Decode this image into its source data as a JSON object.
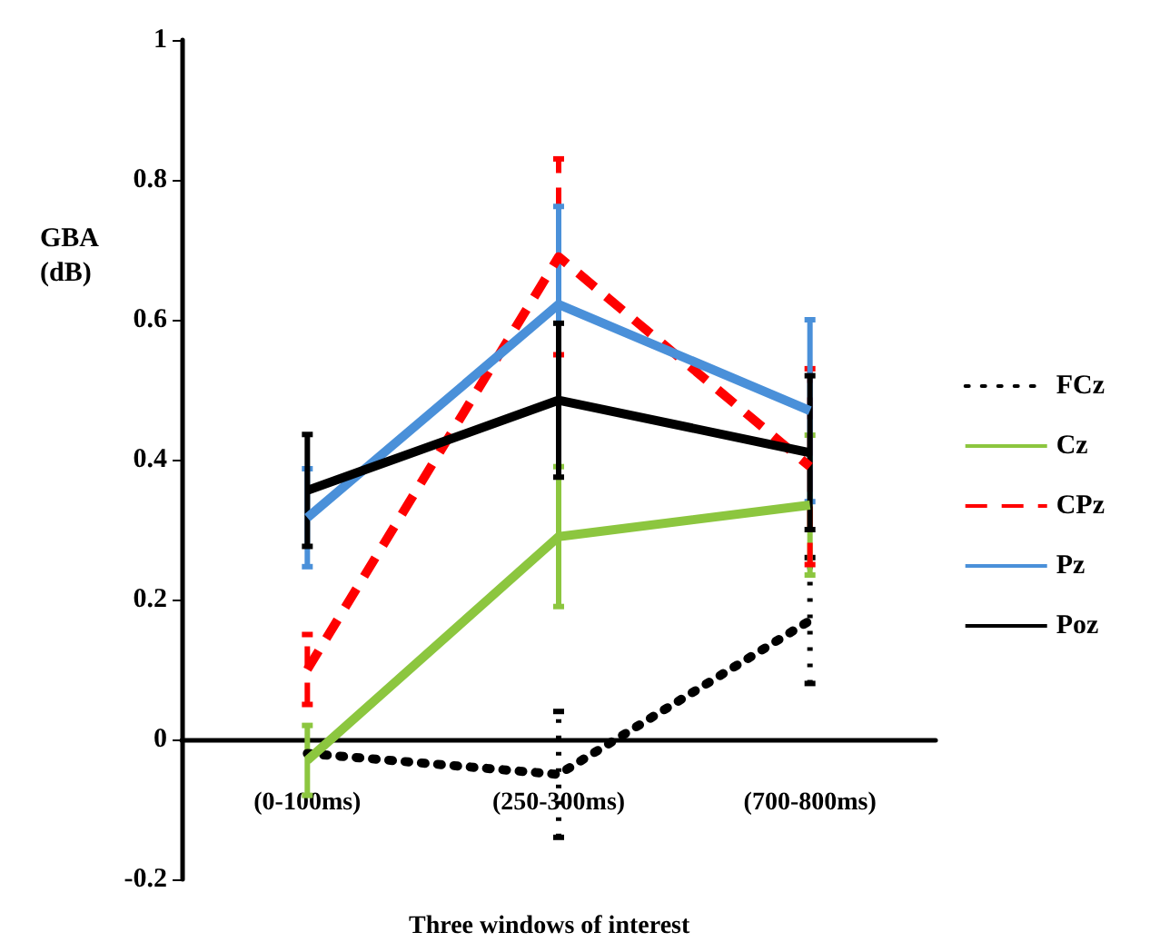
{
  "chart_data": {
    "type": "line",
    "xlabel": "Three windows of interest",
    "ylabel": "GBA (dB)",
    "categories": [
      "(0-100ms)",
      "(250-300ms)",
      "(700-800ms)"
    ],
    "ylim": [
      -0.2,
      1
    ],
    "yticks": [
      -0.2,
      0,
      0.2,
      0.4,
      0.6,
      0.8,
      1
    ],
    "grid": false,
    "legend": "right",
    "marker": "none",
    "series": [
      {
        "name": "FCz",
        "color": "#000000",
        "line_style": "dotted",
        "values": [
          -0.02,
          -0.05,
          0.17
        ],
        "errors": [
          null,
          0.09,
          0.09
        ]
      },
      {
        "name": "Cz",
        "color": "#8cc63f",
        "line_style": "solid",
        "values": [
          -0.03,
          0.29,
          0.335
        ],
        "errors": [
          0.05,
          0.1,
          0.1
        ]
      },
      {
        "name": "CPz",
        "color": "#ff0000",
        "line_style": "dashed",
        "values": [
          0.1,
          0.69,
          0.39
        ],
        "errors": [
          0.05,
          0.14,
          0.14
        ]
      },
      {
        "name": "Pz",
        "color": "#4a90d9",
        "line_style": "solid",
        "values": [
          0.317,
          0.622,
          0.47
        ],
        "errors": [
          0.07,
          0.14,
          0.13
        ]
      },
      {
        "name": "Poz",
        "color": "#000000",
        "line_style": "solid",
        "values": [
          0.356,
          0.485,
          0.41
        ],
        "errors": [
          0.08,
          0.11,
          0.11
        ]
      }
    ]
  }
}
